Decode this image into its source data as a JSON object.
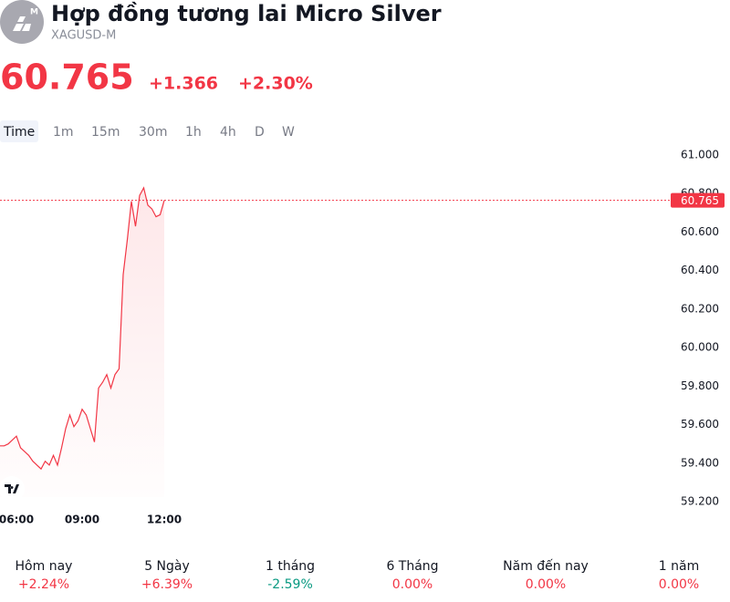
{
  "header": {
    "title": "Hợp đồng tương lai Micro Silver",
    "symbol": "XAGUSD-M",
    "logo_badge": "M"
  },
  "price": {
    "value": "60.765",
    "change": "+1.366",
    "change_pct": "+2.30%",
    "color": "#f23645"
  },
  "timeframes": [
    "Time",
    "1m",
    "15m",
    "30m",
    "1h",
    "4h",
    "D",
    "W"
  ],
  "chart_data": {
    "type": "line",
    "color": "#f23645",
    "categories": [
      null,
      null,
      null,
      null,
      "06:00",
      null,
      null,
      null,
      null,
      null,
      null,
      null,
      null,
      null,
      null,
      null,
      null,
      null,
      null,
      null,
      "09:00",
      null,
      null,
      null,
      null,
      null,
      null,
      null,
      null,
      null,
      null,
      null,
      null,
      null,
      null,
      null,
      null,
      null,
      null,
      null,
      "12:00"
    ],
    "values": [
      59.49,
      59.49,
      59.5,
      59.52,
      59.54,
      59.48,
      59.46,
      59.44,
      59.41,
      59.39,
      59.37,
      59.41,
      59.39,
      59.44,
      59.39,
      59.48,
      59.58,
      59.65,
      59.59,
      59.62,
      59.68,
      59.65,
      59.58,
      59.51,
      59.79,
      59.82,
      59.86,
      59.79,
      59.86,
      59.89,
      60.38,
      60.56,
      60.76,
      60.63,
      60.79,
      60.83,
      60.74,
      60.72,
      60.68,
      60.69,
      60.765
    ],
    "ylim": [
      59.15,
      61.05
    ],
    "yticks": [
      {
        "value": 59.2,
        "label": "59.200"
      },
      {
        "value": 59.4,
        "label": "59.400"
      },
      {
        "value": 59.6,
        "label": "59.600"
      },
      {
        "value": 59.8,
        "label": "59.800"
      },
      {
        "value": 60,
        "label": "60.000"
      },
      {
        "value": 60.2,
        "label": "60.200"
      },
      {
        "value": 60.4,
        "label": "60.400"
      },
      {
        "value": 60.6,
        "label": "60.600"
      },
      {
        "value": 60.8,
        "label": "60.800"
      },
      {
        "value": 61,
        "label": "61.000"
      }
    ]
  },
  "performance": [
    {
      "label": "Hôm nay",
      "value": "+2.24%",
      "color": "#f23645"
    },
    {
      "label": "5 Ngày",
      "value": "+6.39%",
      "color": "#f23645"
    },
    {
      "label": "1 tháng",
      "value": "-2.59%",
      "color": "#089981"
    },
    {
      "label": "6 Tháng",
      "value": "0.00%",
      "color": "#f23645"
    },
    {
      "label": "Năm đến nay",
      "value": "0.00%",
      "color": "#f23645"
    },
    {
      "label": "1 năm",
      "value": "0.00%",
      "color": "#f23645"
    }
  ]
}
